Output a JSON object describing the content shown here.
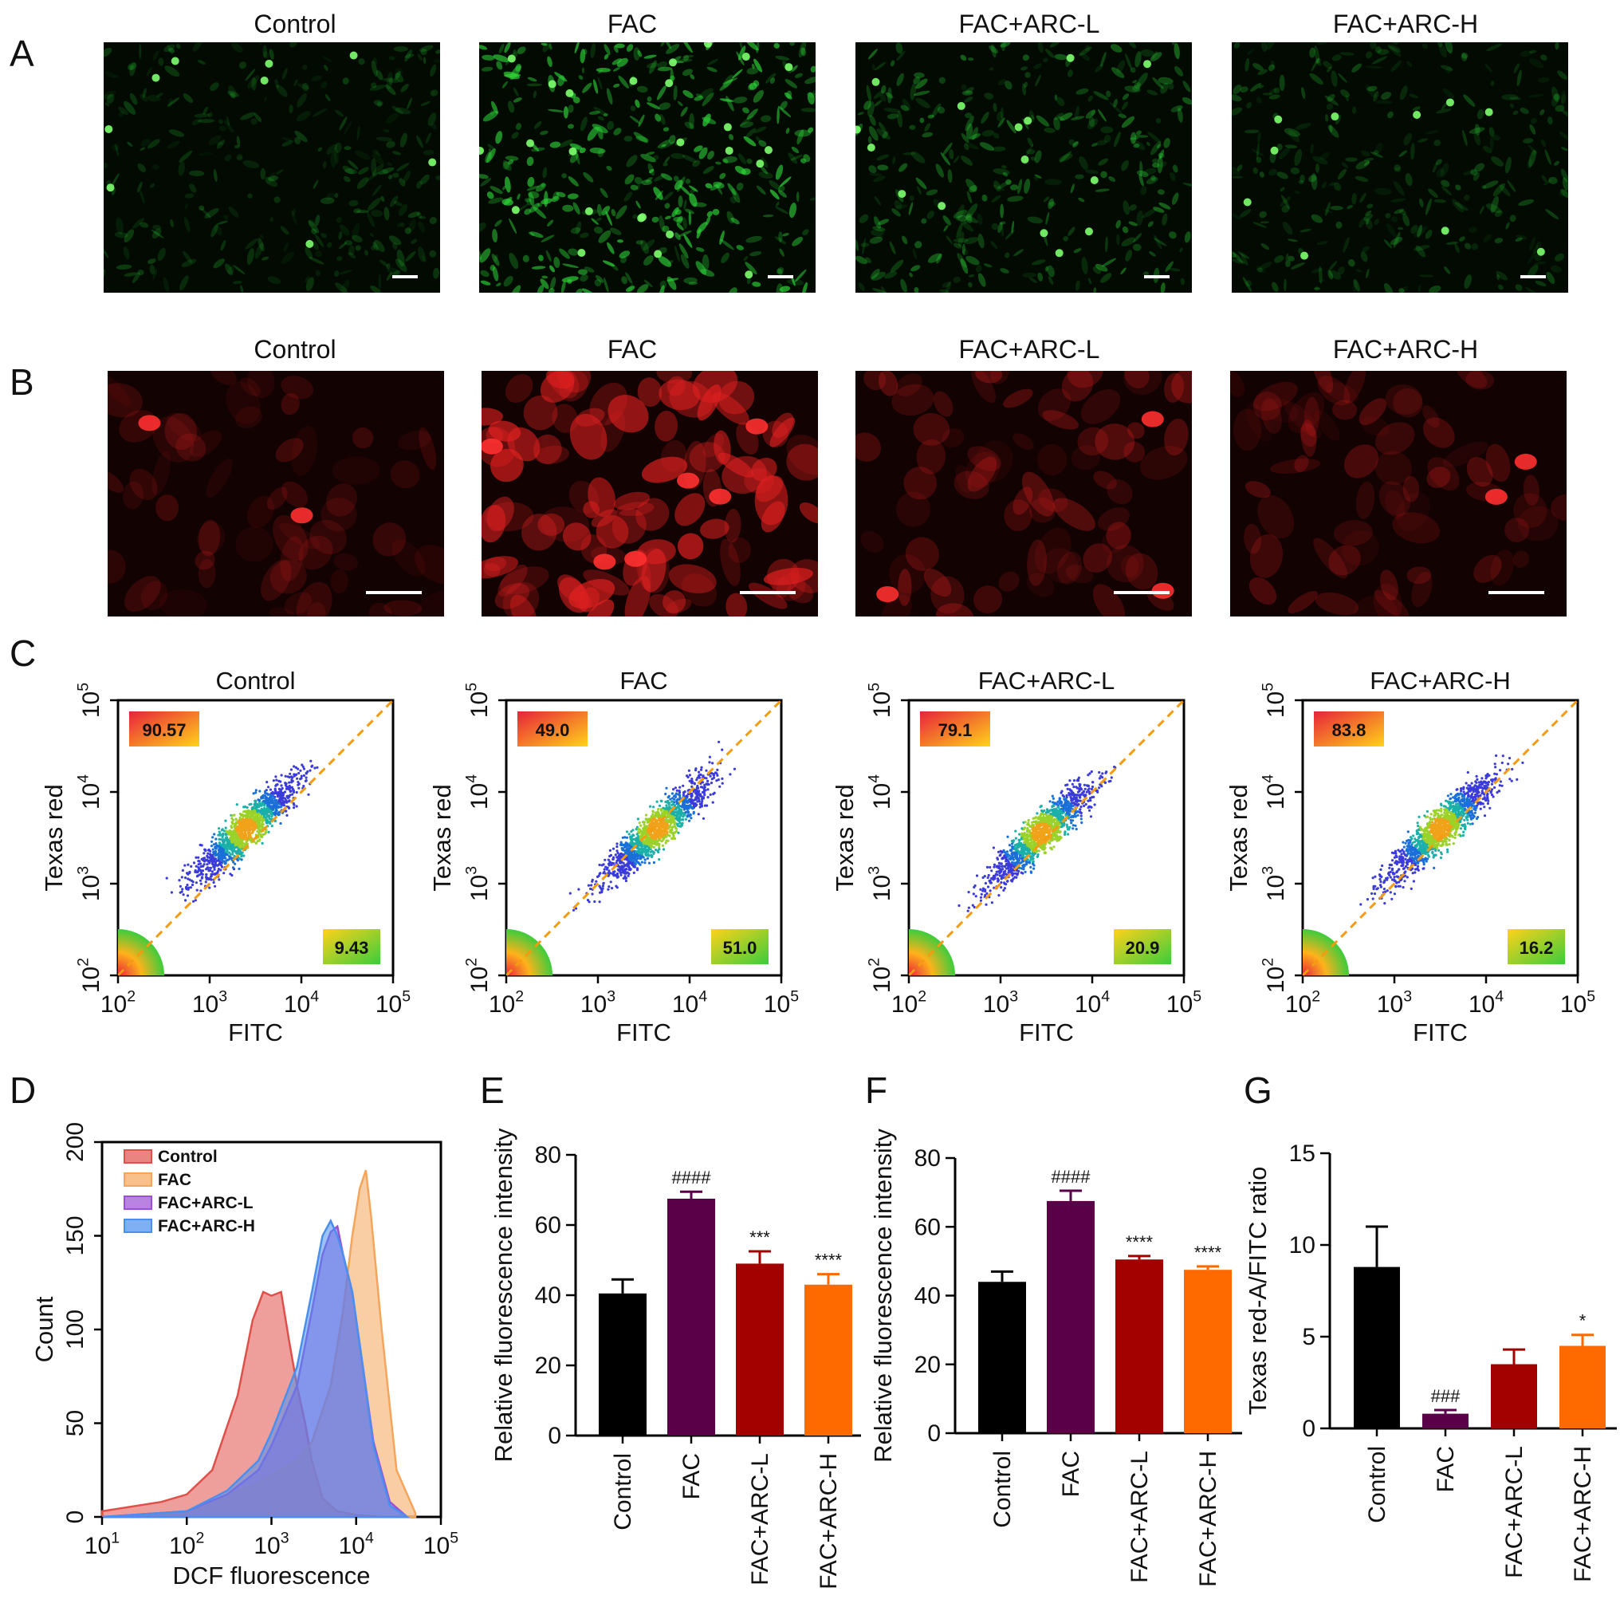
{
  "panel_letters": [
    "A",
    "B",
    "C",
    "D",
    "E",
    "F",
    "G"
  ],
  "groups": [
    "Control",
    "FAC",
    "FAC+ARC-L",
    "FAC+ARC-H"
  ],
  "colors": {
    "control": "#000000",
    "fac": "#5a0048",
    "arc_l": "#a30000",
    "arc_h": "#ff6a00",
    "green_stain": "#2fd63a",
    "red_stain": "#e02020",
    "density_line": "#f39c12"
  },
  "panel_A": {
    "titles": [
      "Control",
      "FAC",
      "FAC+ARC-L",
      "FAC+ARC-H"
    ],
    "intensity": [
      0.35,
      1.0,
      0.6,
      0.4
    ]
  },
  "panel_B": {
    "titles": [
      "Control",
      "FAC",
      "FAC+ARC-L",
      "FAC+ARC-H"
    ],
    "intensity": [
      0.3,
      1.0,
      0.45,
      0.4
    ]
  },
  "panel_C": {
    "plots": [
      {
        "title": "Control",
        "upper": "90.57",
        "lower": "9.43"
      },
      {
        "title": "FAC",
        "upper": "49.0",
        "lower": "51.0"
      },
      {
        "title": "FAC+ARC-L",
        "upper": "79.1",
        "lower": "20.9"
      },
      {
        "title": "FAC+ARC-H",
        "upper": "83.8",
        "lower": "16.2"
      }
    ],
    "xlabel": "FITC",
    "ylabel": "Texas red",
    "ticks": [
      "10",
      "10",
      "10",
      "10"
    ],
    "tick_exp": [
      "2",
      "3",
      "4",
      "5"
    ]
  },
  "chart_data": [
    {
      "panel": "D",
      "type": "area",
      "xlabel": "DCF fluorescence",
      "ylabel": "Count",
      "x_scale": "log",
      "xlim": [
        10,
        100000
      ],
      "ylim": [
        0,
        200
      ],
      "x_ticks": [
        "10",
        "10",
        "10",
        "10",
        "10"
      ],
      "x_tick_exp": [
        "1",
        "2",
        "3",
        "4",
        "5"
      ],
      "y_ticks": [
        "0",
        "50",
        "100",
        "150",
        "200"
      ],
      "legend": "top-left",
      "series": [
        {
          "name": "Control",
          "color": "#e0504a",
          "x": [
            10,
            50,
            100,
            200,
            400,
            600,
            800,
            1000,
            1300,
            1600,
            2000,
            2500,
            3000,
            4000,
            6000,
            10000,
            20000
          ],
          "values": [
            3,
            8,
            12,
            25,
            65,
            105,
            120,
            118,
            120,
            95,
            70,
            50,
            30,
            10,
            3,
            1,
            0
          ]
        },
        {
          "name": "FAC",
          "color": "#f5a55a",
          "x": [
            10,
            100,
            300,
            700,
            1000,
            2000,
            3000,
            5000,
            7000,
            9000,
            11000,
            13000,
            15000,
            20000,
            30000,
            50000
          ],
          "values": [
            0,
            2,
            12,
            18,
            22,
            30,
            40,
            70,
            110,
            150,
            175,
            185,
            160,
            100,
            25,
            2
          ]
        },
        {
          "name": "FAC+ARC-L",
          "color": "#9a4fd4",
          "x": [
            10,
            100,
            300,
            700,
            1000,
            2000,
            3000,
            4000,
            5000,
            6000,
            7000,
            9000,
            12000,
            16000,
            25000,
            40000
          ],
          "values": [
            0,
            3,
            12,
            25,
            38,
            70,
            110,
            140,
            152,
            155,
            140,
            120,
            80,
            40,
            8,
            0
          ]
        },
        {
          "name": "FAC+ARC-H",
          "color": "#4a8ff0",
          "x": [
            10,
            100,
            300,
            700,
            1000,
            2000,
            3000,
            4000,
            5000,
            6000,
            7000,
            9000,
            12000,
            16000,
            25000,
            40000
          ],
          "values": [
            0,
            3,
            14,
            30,
            45,
            80,
            120,
            150,
            158,
            150,
            140,
            120,
            80,
            38,
            6,
            0
          ]
        }
      ]
    },
    {
      "panel": "E",
      "type": "bar",
      "ylabel": "Relative fluorescence intensity",
      "ylim": [
        0,
        80
      ],
      "y_ticks": [
        "0",
        "20",
        "40",
        "60",
        "80"
      ],
      "categories": [
        "Control",
        "FAC",
        "FAC+ARC-L",
        "FAC+ARC-H"
      ],
      "values": [
        40.5,
        67.5,
        49,
        43
      ],
      "errors": [
        4,
        2,
        3.5,
        3
      ],
      "annotations": [
        "",
        "####",
        "***",
        "****"
      ]
    },
    {
      "panel": "F",
      "type": "bar",
      "ylabel": "Relative fluorescence intensity",
      "ylim": [
        0,
        80
      ],
      "y_ticks": [
        "0",
        "20",
        "40",
        "60",
        "80"
      ],
      "categories": [
        "Control",
        "FAC",
        "FAC+ARC-L",
        "FAC+ARC-H"
      ],
      "values": [
        44,
        67.5,
        50.5,
        47.5
      ],
      "errors": [
        3,
        3,
        1,
        1
      ],
      "annotations": [
        "",
        "####",
        "****",
        "****"
      ]
    },
    {
      "panel": "G",
      "type": "bar",
      "ylabel": "Texas red-A/FITC ratio",
      "ylim": [
        0,
        15
      ],
      "y_ticks": [
        "0",
        "5",
        "10",
        "15"
      ],
      "categories": [
        "Control",
        "FAC",
        "FAC+ARC-L",
        "FAC+ARC-H"
      ],
      "values": [
        8.8,
        0.8,
        3.5,
        4.5
      ],
      "errors": [
        2.2,
        0.2,
        0.8,
        0.6
      ],
      "annotations": [
        "",
        "###",
        "",
        "*"
      ]
    }
  ]
}
